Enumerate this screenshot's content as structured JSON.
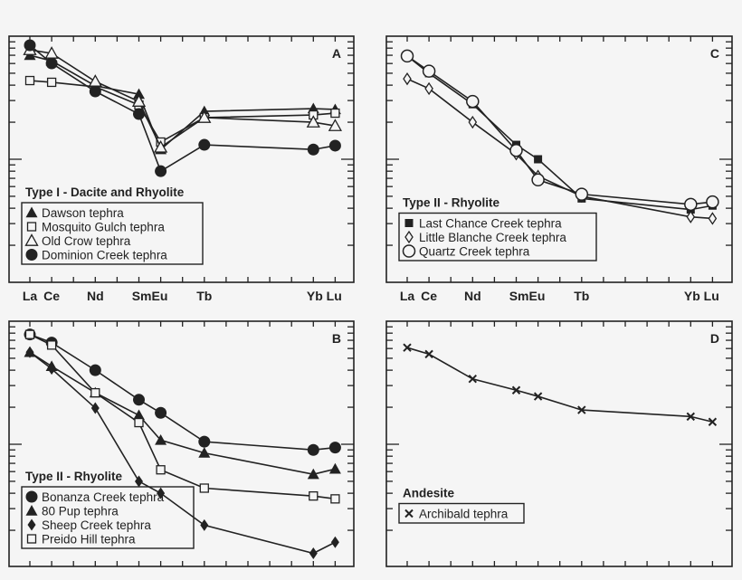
{
  "figure": {
    "background": "#f5f5f5",
    "ink": "#222222"
  },
  "chart_data": [
    {
      "panel": "A",
      "type": "line",
      "yscale": "log",
      "ylim": [
        10,
        1000
      ],
      "categories": [
        "La",
        "Ce",
        "Nd",
        "Sm",
        "Eu",
        "Tb",
        "Yb",
        "Lu"
      ],
      "x_tick_labels": [
        "La",
        "Ce",
        "Nd",
        "SmEu",
        "Tb",
        "Yb Lu"
      ],
      "group_title": "Type I - Dacite and Rhyolite",
      "legend_position": "lower left",
      "series": [
        {
          "name": "Dawson tephra",
          "marker": "filled-triangle",
          "values": [
            700,
            630,
            395,
            338,
            120,
            245,
            258,
            254
          ]
        },
        {
          "name": "Mosquito Gulch tephra",
          "marker": "open-square",
          "values": [
            436,
            422,
            388,
            276,
            138,
            218,
            229,
            237
          ]
        },
        {
          "name": "Old Crow tephra",
          "marker": "open-triangle",
          "values": [
            775,
            725,
            429,
            295,
            125,
            218,
            200,
            187
          ]
        },
        {
          "name": "Dominion Creek tephra",
          "marker": "filled-circle",
          "values": [
            844,
            602,
            356,
            233,
            80,
            131,
            120,
            129
          ]
        }
      ]
    },
    {
      "panel": "C",
      "type": "line",
      "yscale": "log",
      "ylim": [
        10,
        1000
      ],
      "categories": [
        "La",
        "Ce",
        "Nd",
        "Sm",
        "Eu",
        "Tb",
        "Yb",
        "Lu"
      ],
      "x_tick_labels": [
        "La",
        "Ce",
        "Nd",
        "SmEu",
        "Tb",
        "Yb Lu"
      ],
      "group_title": "Type II - Rhyolite",
      "legend_position": "lower left",
      "series": [
        {
          "name": "Last Chance Creek tephra",
          "marker": "filled-square",
          "values": [
            690,
            500,
            280,
            131,
            100,
            48,
            39,
            42
          ]
        },
        {
          "name": "Little Blanche Creek tephra",
          "marker": "open-diamond",
          "values": [
            450,
            375,
            200,
            110,
            73,
            50,
            34,
            33
          ]
        },
        {
          "name": "Quartz Creek tephra",
          "marker": "open-circle",
          "values": [
            690,
            520,
            295,
            118,
            68,
            52,
            43,
            45
          ]
        }
      ]
    },
    {
      "panel": "B",
      "type": "line",
      "yscale": "log",
      "ylim": [
        10,
        1000
      ],
      "categories": [
        "La",
        "Ce",
        "Nd",
        "Sm",
        "Eu",
        "Tb",
        "Yb",
        "Lu"
      ],
      "group_title": "Type II - Rhyolite",
      "legend_position": "lower left",
      "series": [
        {
          "name": "Bonanza Creek tephra",
          "marker": "filled-circle",
          "values": [
            780,
            670,
            400,
            230,
            180,
            105,
            90,
            94
          ]
        },
        {
          "name": "80 Pup tephra",
          "marker": "filled-triangle",
          "values": [
            560,
            430,
            262,
            172,
            108,
            85,
            57,
            63
          ]
        },
        {
          "name": "Sheep Creek tephra",
          "marker": "filled-diamond",
          "values": [
            560,
            410,
            197,
            50,
            40,
            22,
            13,
            16
          ]
        },
        {
          "name": "Preido Hill tephra",
          "marker": "open-square",
          "values": [
            780,
            640,
            262,
            150,
            62,
            44,
            38,
            36
          ]
        }
      ]
    },
    {
      "panel": "D",
      "type": "line",
      "yscale": "log",
      "ylim": [
        10,
        1000
      ],
      "categories": [
        "La",
        "Ce",
        "Nd",
        "Sm",
        "Eu",
        "Tb",
        "Yb",
        "Lu"
      ],
      "group_title": "Andesite",
      "legend_position": "lower left",
      "series": [
        {
          "name": "Archibald tephra",
          "marker": "x",
          "values": [
            610,
            540,
            340,
            275,
            245,
            190,
            168,
            152
          ]
        }
      ]
    }
  ]
}
